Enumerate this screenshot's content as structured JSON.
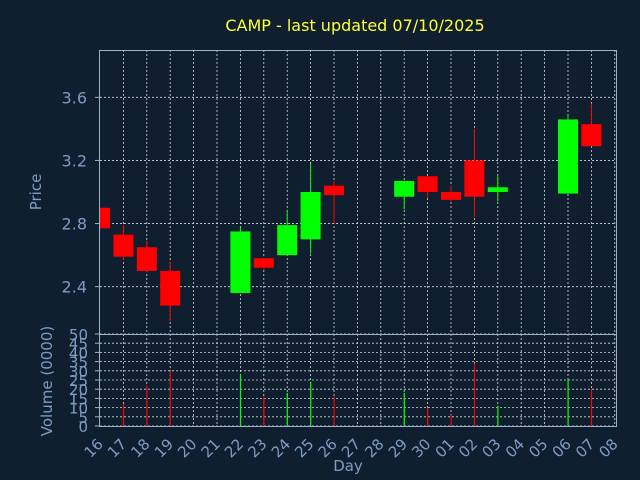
{
  "title": "CAMP - last updated 07/10/2025",
  "chart_data": [
    {
      "type": "candlestick",
      "ylabel": "Price",
      "ylim": [
        2.1,
        3.9
      ],
      "yticks": [
        "2.4",
        "2.8",
        "3.2",
        "3.6"
      ],
      "grid": true,
      "up_color": "#00ff00",
      "down_color": "#ff0000",
      "candles": [
        {
          "day": "16",
          "open": 2.9,
          "high": 2.9,
          "low": 2.76,
          "close": 2.77
        },
        {
          "day": "17",
          "open": 2.73,
          "high": 2.79,
          "low": 2.57,
          "close": 2.59
        },
        {
          "day": "18",
          "open": 2.65,
          "high": 2.69,
          "low": 2.49,
          "close": 2.5
        },
        {
          "day": "19",
          "open": 2.5,
          "high": 2.56,
          "low": 2.18,
          "close": 2.28
        },
        {
          "day": "22",
          "open": 2.36,
          "high": 2.78,
          "low": 2.36,
          "close": 2.75
        },
        {
          "day": "23",
          "open": 2.58,
          "high": 2.58,
          "low": 2.51,
          "close": 2.52
        },
        {
          "day": "24",
          "open": 2.6,
          "high": 2.88,
          "low": 2.6,
          "close": 2.79
        },
        {
          "day": "25",
          "open": 2.7,
          "high": 3.18,
          "low": 2.61,
          "close": 3.0
        },
        {
          "day": "26",
          "open": 3.04,
          "high": 3.07,
          "low": 2.8,
          "close": 2.98
        },
        {
          "day": "29",
          "open": 2.97,
          "high": 3.07,
          "low": 2.89,
          "close": 3.07
        },
        {
          "day": "30",
          "open": 3.1,
          "high": 3.1,
          "low": 2.96,
          "close": 3.0
        },
        {
          "day": "01",
          "open": 3.0,
          "high": 3.04,
          "low": 2.94,
          "close": 2.95
        },
        {
          "day": "02",
          "open": 3.2,
          "high": 3.4,
          "low": 2.84,
          "close": 2.97
        },
        {
          "day": "03",
          "open": 3.0,
          "high": 3.1,
          "low": 2.94,
          "close": 3.03
        },
        {
          "day": "06",
          "open": 2.99,
          "high": 3.48,
          "low": 2.99,
          "close": 3.46
        },
        {
          "day": "07",
          "open": 3.43,
          "high": 3.56,
          "low": 3.29,
          "close": 3.29
        }
      ]
    },
    {
      "type": "bar",
      "ylabel": "Volume (0000)",
      "xlabel": "Day",
      "ylim": [
        0,
        50
      ],
      "yticks": [
        "0",
        "5",
        "10",
        "15",
        "20",
        "25",
        "30",
        "35",
        "40",
        "45",
        "50"
      ],
      "categories": [
        "16",
        "17",
        "18",
        "19",
        "20",
        "21",
        "22",
        "23",
        "24",
        "25",
        "26",
        "27",
        "28",
        "29",
        "30",
        "01",
        "02",
        "03",
        "04",
        "05",
        "06",
        "07",
        "08"
      ],
      "values": [
        0,
        12,
        22,
        30,
        0,
        0,
        28,
        16,
        18,
        24,
        16,
        0,
        0,
        18,
        10,
        6,
        34,
        11,
        0,
        0,
        25,
        20,
        0
      ],
      "up_color": "#00ff00",
      "down_color": "#ff0000",
      "directions": [
        "",
        "down",
        "down",
        "down",
        "",
        "",
        "up",
        "down",
        "up",
        "up",
        "down",
        "",
        "",
        "up",
        "down",
        "down",
        "down",
        "up",
        "",
        "",
        "up",
        "down",
        ""
      ]
    }
  ]
}
